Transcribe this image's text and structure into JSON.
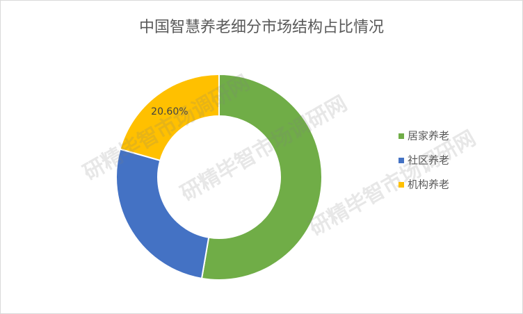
{
  "chart_data": {
    "type": "donut",
    "title": "中国智慧养老细分市场结构占比情况",
    "categories": [
      "居家养老",
      "社区养老",
      "机构养老"
    ],
    "values": [
      52.7,
      26.7,
      20.6
    ],
    "value_labels": [
      null,
      null,
      "20.60%"
    ],
    "colors": [
      "#70ad47",
      "#4472c4",
      "#ffc000"
    ],
    "legend": "right",
    "watermark": "研精毕智市场调研网"
  }
}
